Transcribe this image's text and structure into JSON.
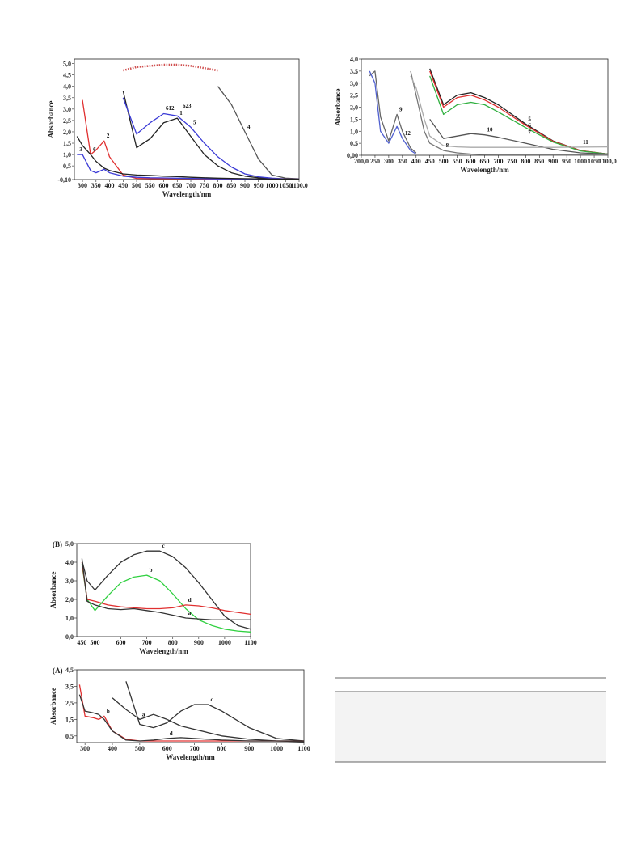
{
  "chart_data": [
    {
      "type": "line",
      "y_label": "Absorbance",
      "x_label": "Wavelength/nm",
      "annotations": [
        "612",
        "623"
      ],
      "x": [
        280,
        300,
        330,
        350,
        380,
        400,
        450,
        500,
        550,
        600,
        650,
        700,
        750,
        800,
        850,
        900,
        950,
        1000,
        1050,
        1100
      ],
      "xlim": [
        270,
        1100
      ],
      "xticks": [
        300,
        350,
        400,
        450,
        500,
        550,
        600,
        650,
        700,
        750,
        800,
        850,
        900,
        950,
        1000,
        1050,
        {
          "value": 1100,
          "label": "1100,0"
        }
      ],
      "ylim": [
        -0.1,
        5.2
      ],
      "yticks": [
        {
          "value": -0.1,
          "label": "-0,10"
        },
        {
          "value": 0.5,
          "label": "0,5"
        },
        {
          "value": 1,
          "label": "1,0"
        },
        {
          "value": 1.5,
          "label": "1,5"
        },
        {
          "value": 2,
          "label": "2,0"
        },
        {
          "value": 2.5,
          "label": "2,5"
        },
        {
          "value": 3,
          "label": "3,0"
        },
        {
          "value": 3.5,
          "label": "3,5"
        },
        {
          "value": 4,
          "label": "4,0"
        },
        {
          "value": 4.5,
          "label": "4,5"
        },
        {
          "value": 5,
          "label": "5,0"
        }
      ],
      "series": [
        {
          "name": "1",
          "color": "#222222",
          "values": [
            null,
            null,
            null,
            null,
            null,
            null,
            3.8,
            1.3,
            1.7,
            2.4,
            2.6,
            1.8,
            1.0,
            0.5,
            0.2,
            0.05,
            -0.02,
            -0.06,
            -0.08,
            -0.08
          ]
        },
        {
          "name": "5",
          "color": "#3b3bd6",
          "values": [
            null,
            null,
            null,
            null,
            null,
            null,
            3.5,
            1.9,
            2.4,
            2.8,
            2.7,
            2.2,
            1.5,
            0.9,
            0.45,
            0.15,
            0.02,
            -0.04,
            -0.07,
            -0.08
          ]
        },
        {
          "name": "4",
          "color": "#555555",
          "values": [
            null,
            null,
            null,
            null,
            null,
            null,
            null,
            null,
            null,
            null,
            null,
            null,
            null,
            4.0,
            3.2,
            2.0,
            0.8,
            0.1,
            -0.04,
            -0.07
          ]
        },
        {
          "color": "#d05050",
          "style": "dotted",
          "values": [
            null,
            null,
            null,
            null,
            null,
            null,
            4.7,
            4.85,
            4.9,
            4.95,
            4.95,
            4.9,
            4.8,
            4.7,
            null,
            null,
            null,
            null,
            null,
            null
          ]
        },
        {
          "name": "2",
          "color": "#e03030",
          "values": [
            null,
            3.4,
            1.0,
            1.2,
            1.6,
            0.9,
            0.1,
            -0.05,
            -0.06,
            -0.06,
            -0.06,
            -0.06,
            -0.07,
            -0.07,
            -0.07,
            -0.08,
            -0.08,
            -0.08,
            -0.08,
            -0.08
          ]
        },
        {
          "name": "3",
          "color": "#3b3bd6",
          "values": [
            1.0,
            1.0,
            0.3,
            0.2,
            0.35,
            0.2,
            0.05,
            0.0,
            -0.02,
            -0.03,
            -0.04,
            -0.05,
            -0.06,
            -0.07,
            -0.07,
            -0.08,
            -0.08,
            -0.08,
            -0.08,
            -0.08
          ]
        },
        {
          "name": "6",
          "color": "#222222",
          "values": [
            1.8,
            1.4,
            1.0,
            0.7,
            0.4,
            0.3,
            0.15,
            0.1,
            0.08,
            0.05,
            0.03,
            0.0,
            -0.02,
            -0.04,
            -0.05,
            -0.06,
            -0.07,
            -0.08,
            -0.08,
            -0.08
          ]
        }
      ]
    },
    {
      "type": "line",
      "y_label": "Absorbance",
      "x_label": "Wavelength/nm",
      "x": [
        230,
        250,
        270,
        300,
        330,
        350,
        380,
        400,
        430,
        450,
        500,
        550,
        600,
        650,
        700,
        800,
        900,
        1000,
        1100
      ],
      "xlim": [
        200,
        1100
      ],
      "xticks": [
        {
          "value": 200,
          "label": "200,0"
        },
        250,
        300,
        350,
        400,
        450,
        500,
        550,
        600,
        650,
        700,
        750,
        800,
        850,
        900,
        950,
        1000,
        1050,
        {
          "value": 1100,
          "label": "1100,0"
        }
      ],
      "ylim": [
        0,
        4
      ],
      "yticks": [
        {
          "value": 0,
          "label": "0,00"
        },
        {
          "value": 0.5,
          "label": "0,5"
        },
        {
          "value": 1,
          "label": "1,0"
        },
        {
          "value": 1.5,
          "label": "1,5"
        },
        {
          "value": 2,
          "label": "2,0"
        },
        {
          "value": 2.5,
          "label": "2,5"
        },
        {
          "value": 3,
          "label": "3,0"
        },
        {
          "value": 3.5,
          "label": "3,5"
        },
        {
          "value": 4,
          "label": "4,0"
        }
      ],
      "series": [
        {
          "name": "5",
          "color": "#222222",
          "values": [
            null,
            null,
            null,
            null,
            null,
            null,
            null,
            null,
            null,
            3.6,
            2.1,
            2.5,
            2.6,
            2.4,
            2.1,
            1.3,
            0.6,
            0.2,
            0.05
          ]
        },
        {
          "name": "6",
          "color": "#e03030",
          "values": [
            null,
            null,
            null,
            null,
            null,
            null,
            null,
            null,
            null,
            3.5,
            2.0,
            2.4,
            2.5,
            2.3,
            2.0,
            1.25,
            0.58,
            0.2,
            0.05
          ]
        },
        {
          "name": "7",
          "color": "#30b040",
          "values": [
            null,
            null,
            null,
            null,
            null,
            null,
            null,
            null,
            null,
            3.3,
            1.7,
            2.1,
            2.2,
            2.1,
            1.8,
            1.15,
            0.55,
            0.18,
            0.05
          ]
        },
        {
          "name": "8",
          "color": "#777777",
          "values": [
            null,
            null,
            null,
            null,
            null,
            null,
            3.5,
            2.5,
            1.0,
            0.5,
            0.2,
            0.1,
            0.05,
            0.03,
            0.02,
            0.02,
            0.01,
            0.01,
            0.01
          ]
        },
        {
          "name": "10",
          "color": "#555555",
          "values": [
            null,
            null,
            null,
            null,
            null,
            null,
            null,
            null,
            null,
            1.5,
            0.7,
            0.8,
            0.9,
            0.85,
            0.75,
            0.5,
            0.25,
            0.1,
            0.05
          ]
        },
        {
          "name": "11",
          "color": "#aaaaaa",
          "values": [
            null,
            null,
            null,
            null,
            null,
            null,
            3.3,
            2.8,
            1.5,
            0.8,
            0.4,
            0.35,
            0.33,
            0.33,
            0.33,
            0.33,
            0.33,
            0.34,
            0.35
          ]
        },
        {
          "name": "9",
          "color": "#666666",
          "values": [
            3.3,
            3.5,
            1.6,
            0.6,
            1.7,
            1.0,
            0.3,
            0.1,
            null,
            null,
            null,
            null,
            null,
            null,
            null,
            null,
            null,
            null,
            null
          ]
        },
        {
          "name": "12",
          "color": "#5060d0",
          "values": [
            3.5,
            3.0,
            1.0,
            0.5,
            1.2,
            0.7,
            0.2,
            0.05,
            null,
            null,
            null,
            null,
            null,
            null,
            null,
            null,
            null,
            null,
            null
          ]
        }
      ]
    },
    {
      "type": "line",
      "panel_label": "(B)",
      "y_label": "Absorbance",
      "x_label": "Wavelength/nm",
      "x": [
        450,
        470,
        500,
        550,
        600,
        650,
        700,
        750,
        800,
        850,
        900,
        950,
        1000,
        1050,
        1100
      ],
      "xlim": [
        430,
        1100
      ],
      "xticks": [
        450,
        500,
        600,
        700,
        800,
        900,
        1000,
        1100
      ],
      "ylim": [
        0,
        5
      ],
      "yticks": [
        {
          "value": 0,
          "label": "0,0"
        },
        {
          "value": 1,
          "label": "1,0"
        },
        {
          "value": 2,
          "label": "2,0"
        },
        {
          "value": 3,
          "label": "3,0"
        },
        {
          "value": 4,
          "label": "4,0"
        },
        {
          "value": 5,
          "label": "5,0"
        }
      ],
      "series": [
        {
          "name": "c",
          "color": "#333333",
          "values": [
            4.1,
            3.0,
            2.5,
            3.3,
            4.0,
            4.4,
            4.6,
            4.6,
            4.3,
            3.7,
            2.9,
            2.0,
            1.1,
            0.6,
            0.4
          ]
        },
        {
          "name": "b",
          "color": "#30d040",
          "values": [
            3.9,
            2.0,
            1.4,
            2.2,
            2.9,
            3.2,
            3.3,
            3.0,
            2.3,
            1.5,
            0.9,
            0.6,
            0.4,
            0.3,
            0.25
          ]
        },
        {
          "name": "d",
          "color": "#e03030",
          "values": [
            4.0,
            2.0,
            1.9,
            1.7,
            1.6,
            1.55,
            1.5,
            1.5,
            1.55,
            1.7,
            1.65,
            1.55,
            1.4,
            1.3,
            1.2
          ]
        },
        {
          "name": "a",
          "color": "#333333",
          "values": [
            4.2,
            1.9,
            1.7,
            1.5,
            1.45,
            1.5,
            1.4,
            1.3,
            1.15,
            1.0,
            0.95,
            0.9,
            0.9,
            0.9,
            0.9
          ]
        }
      ]
    },
    {
      "type": "line",
      "panel_label": "(A)",
      "y_label": "Absorbance",
      "x_label": "Wavelength/nm",
      "x": [
        280,
        300,
        330,
        350,
        370,
        400,
        450,
        500,
        550,
        600,
        650,
        700,
        750,
        800,
        900,
        1000,
        1100
      ],
      "xlim": [
        270,
        1100
      ],
      "xticks": [
        300,
        400,
        500,
        600,
        700,
        800,
        900,
        1000,
        1100
      ],
      "ylim": [
        0.1,
        4.5
      ],
      "yticks": [
        {
          "value": 0.5,
          "label": "0,5"
        },
        {
          "value": 1.5,
          "label": "1,5"
        },
        {
          "value": 2.5,
          "label": "2,5"
        },
        {
          "value": 3.5,
          "label": "3,5"
        },
        {
          "value": 4.5,
          "label": "4,5"
        }
      ],
      "series": [
        {
          "name": "c",
          "color": "#333333",
          "values": [
            null,
            null,
            null,
            null,
            null,
            null,
            3.8,
            1.2,
            1.0,
            1.3,
            2.0,
            2.4,
            2.4,
            2.0,
            1.0,
            0.35,
            0.2
          ]
        },
        {
          "name": "a",
          "color": "#333333",
          "values": [
            null,
            null,
            null,
            null,
            null,
            2.8,
            2.1,
            1.5,
            1.8,
            1.5,
            1.1,
            0.9,
            0.7,
            0.5,
            0.3,
            0.2,
            0.15
          ]
        },
        {
          "name": "b",
          "color": "#e03030",
          "values": [
            3.6,
            1.7,
            1.6,
            1.5,
            1.7,
            0.8,
            0.3,
            0.2,
            0.2,
            0.2,
            0.2,
            0.2,
            0.2,
            0.2,
            0.2,
            0.2,
            0.2
          ]
        },
        {
          "name": "d",
          "color": "#333333",
          "values": [
            3.0,
            2.0,
            1.9,
            1.8,
            1.5,
            0.8,
            0.25,
            0.2,
            0.25,
            0.35,
            0.4,
            0.35,
            0.3,
            0.25,
            0.2,
            0.2,
            0.2
          ]
        }
      ]
    }
  ]
}
